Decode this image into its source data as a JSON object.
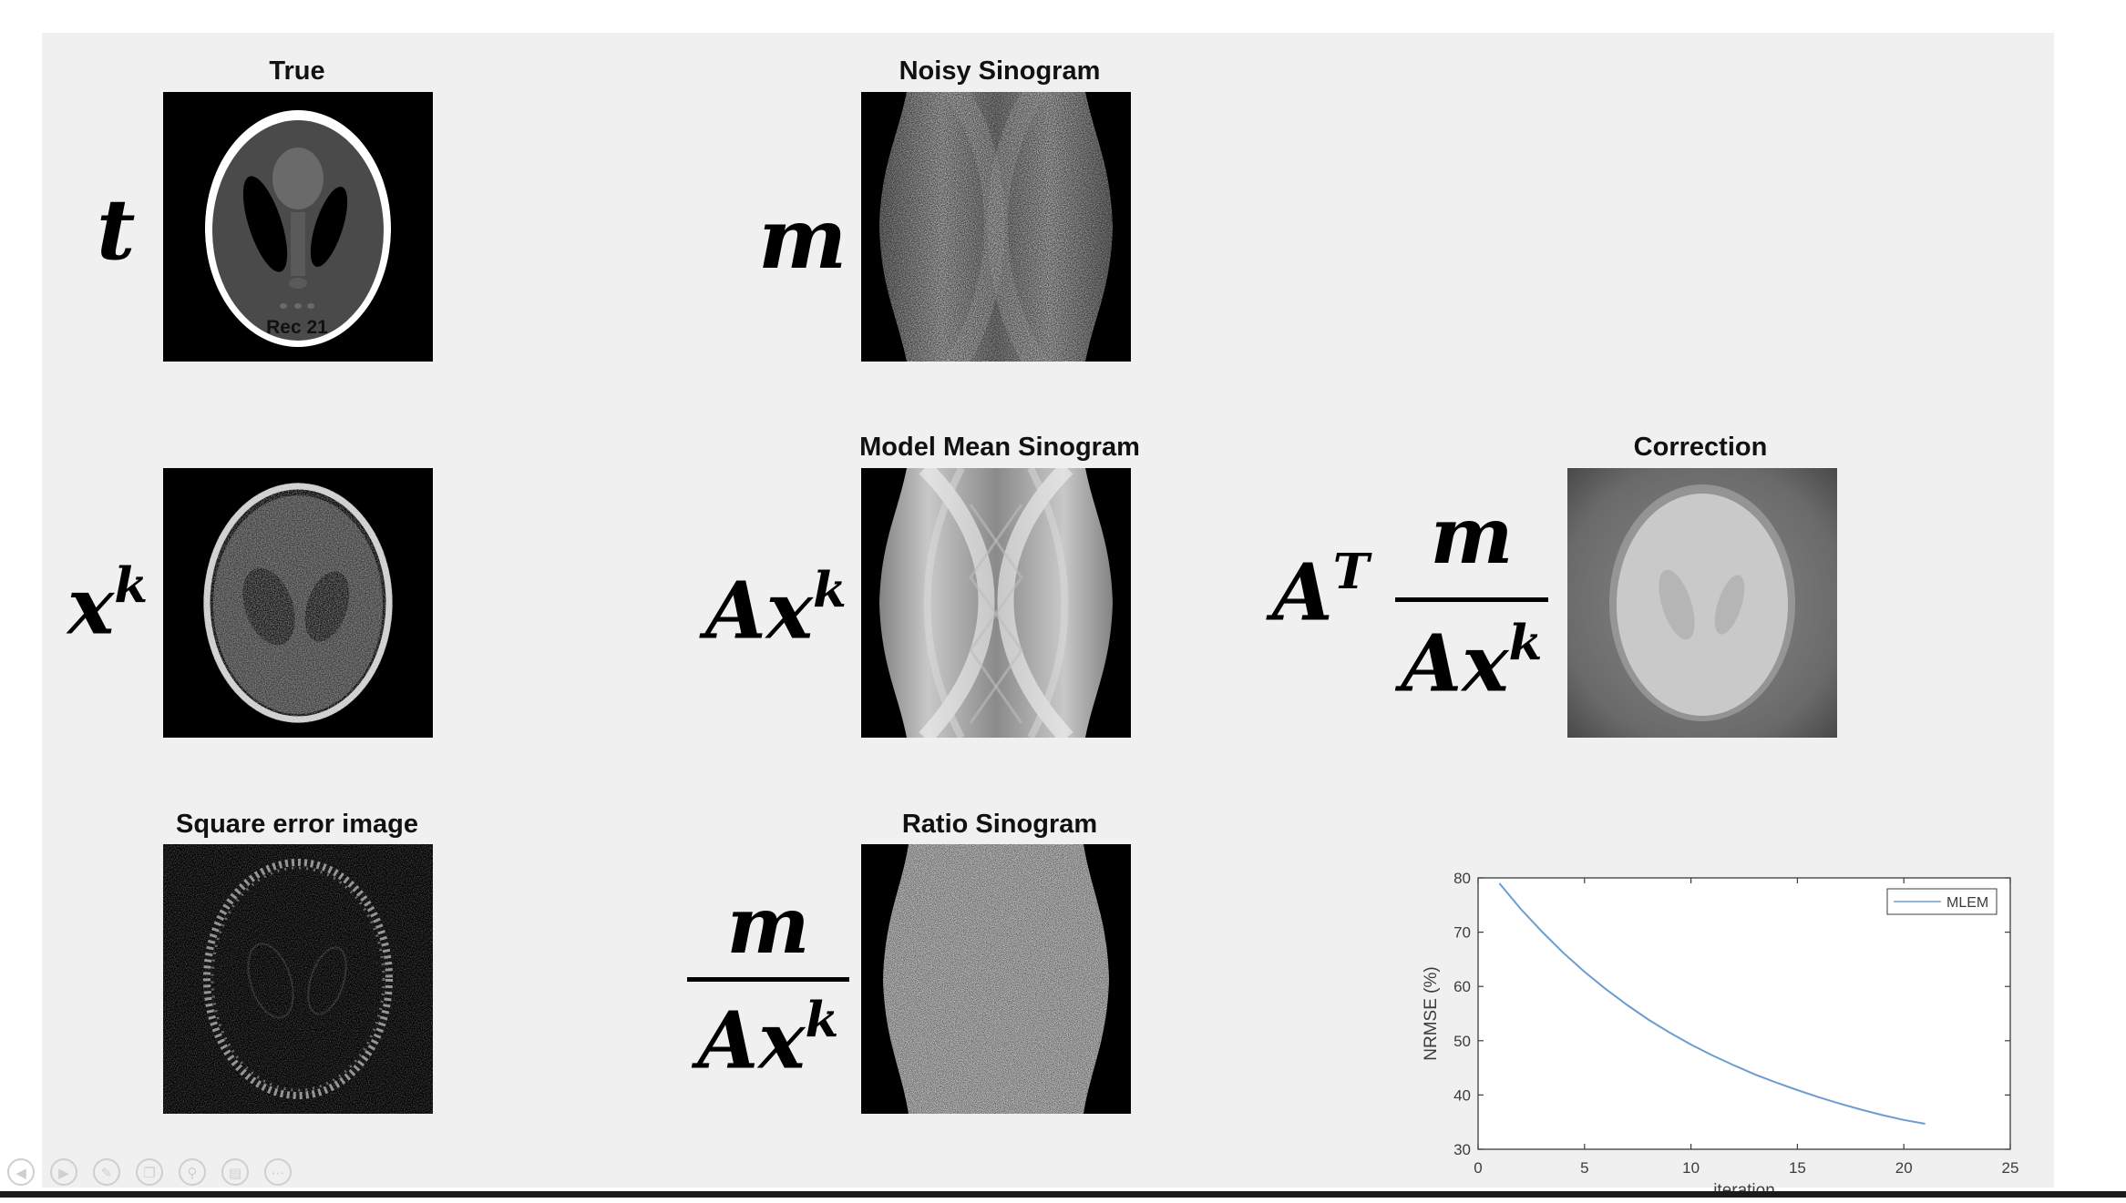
{
  "panels": {
    "true": {
      "title": "True",
      "symbol": "t"
    },
    "noisy": {
      "title": "Noisy Sinogram",
      "symbol": "m"
    },
    "rec": {
      "title": "Rec 21",
      "symbol_base": "x",
      "symbol_sup": "k"
    },
    "model": {
      "title": "Model Mean Sinogram",
      "symbol_base": "Ax",
      "symbol_sup": "k"
    },
    "correction": {
      "title": "Correction",
      "prefix_base": "A",
      "prefix_sup": "T",
      "numerator": "m",
      "denominator_base": "Ax",
      "denominator_sup": "k"
    },
    "sqerr": {
      "title": "Square error image"
    },
    "ratio": {
      "title": "Ratio Sinogram",
      "numerator": "m",
      "denominator_base": "Ax",
      "denominator_sup": "k"
    }
  },
  "chart_data": {
    "type": "line",
    "xlabel": "iteration",
    "ylabel": "NRMSE (%)",
    "xlim": [
      0,
      25
    ],
    "ylim": [
      30,
      80
    ],
    "xticks": [
      0,
      5,
      10,
      15,
      20,
      25
    ],
    "yticks": [
      30,
      40,
      50,
      60,
      70,
      80
    ],
    "legend_position": "top-right",
    "grid": false,
    "series": [
      {
        "name": "MLEM",
        "color": "#6d9cd1",
        "x": [
          1,
          2,
          3,
          4,
          5,
          6,
          7,
          8,
          9,
          10,
          11,
          12,
          13,
          14,
          15,
          16,
          17,
          18,
          19,
          20,
          21
        ],
        "y": [
          79,
          74.3,
          70.1,
          66.2,
          62.7,
          59.5,
          56.6,
          53.9,
          51.5,
          49.3,
          47.3,
          45.5,
          43.8,
          42.3,
          40.9,
          39.6,
          38.4,
          37.3,
          36.3,
          35.4,
          34.7
        ]
      }
    ]
  },
  "toolbar": {
    "icons": [
      "prev-icon",
      "next-icon",
      "pen-icon",
      "copy-icon",
      "zoom-icon",
      "subtitles-icon",
      "more-icon"
    ]
  },
  "colors": {
    "slide_bg": "#f0f0f0",
    "panel_bg": "#000000",
    "series": "#6d9cd1"
  }
}
